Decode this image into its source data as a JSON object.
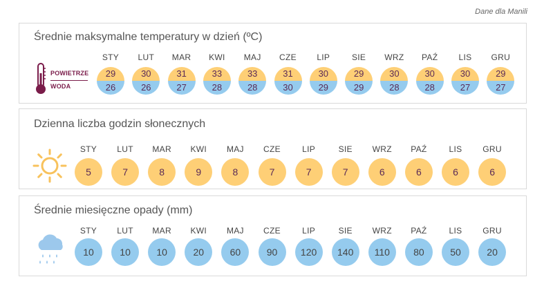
{
  "source_note": "Dane dla Manili",
  "months": [
    "STY",
    "LUT",
    "MAR",
    "KWI",
    "MAJ",
    "CZE",
    "LIP",
    "SIE",
    "WRZ",
    "PAŹ",
    "LIS",
    "GRU"
  ],
  "temperature": {
    "title": "Średnie maksymalne temperatury w dzień (ºC)",
    "legend_air": "POWIETRZE",
    "legend_water": "WODA",
    "air": [
      "29",
      "30",
      "31",
      "33",
      "33",
      "31",
      "30",
      "29",
      "30",
      "30",
      "30",
      "29"
    ],
    "water": [
      "26",
      "26",
      "27",
      "28",
      "28",
      "30",
      "29",
      "29",
      "28",
      "28",
      "27",
      "27"
    ],
    "icon": "thermometer-icon",
    "colors": {
      "air": "#fecf76",
      "water": "#95cbee",
      "accent": "#7a1c4a"
    }
  },
  "sunshine": {
    "title": "Dzienna liczba godzin słonecznych",
    "values": [
      "5",
      "7",
      "8",
      "9",
      "8",
      "7",
      "7",
      "7",
      "6",
      "6",
      "6",
      "6"
    ],
    "icon": "sun-icon",
    "color": "#fecf76"
  },
  "rainfall": {
    "title": "Średnie miesięczne opady (mm)",
    "values": [
      "10",
      "10",
      "10",
      "20",
      "60",
      "90",
      "120",
      "140",
      "110",
      "80",
      "50",
      "20"
    ],
    "icon": "rain-cloud-icon",
    "color": "#95cbee"
  }
}
